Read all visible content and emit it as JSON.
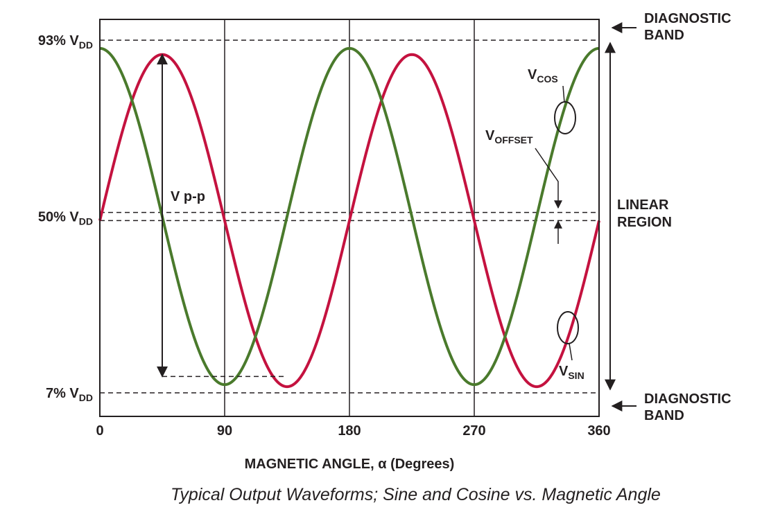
{
  "chart_data": {
    "type": "line",
    "xlabel": "MAGNETIC ANGLE, α (Degrees)",
    "x_ticks": [
      "0",
      "90",
      "180",
      "270",
      "360"
    ],
    "xlim": [
      0,
      360
    ],
    "ylim_percent_vdd": [
      0,
      100
    ],
    "y_ticks": [
      {
        "value": 93,
        "prefix": "93% V",
        "sub": "DD"
      },
      {
        "value": 50,
        "prefix": "50% V",
        "sub": "DD"
      },
      {
        "value": 7,
        "prefix": "7% V",
        "sub": "DD"
      }
    ],
    "x_grid": [
      90,
      180,
      270
    ],
    "series": [
      {
        "name": "V_SIN",
        "color": "#c4123f",
        "x": [
          0,
          45,
          90,
          135,
          180,
          225,
          270,
          315,
          360
        ],
        "values": [
          49,
          89.5,
          49,
          8.5,
          49,
          89.5,
          49,
          8.5,
          49
        ]
      },
      {
        "name": "V_COS",
        "color": "#4a7a2c",
        "x": [
          0,
          45,
          90,
          135,
          180,
          225,
          270,
          315,
          360
        ],
        "values": [
          91,
          50,
          9,
          50,
          91,
          50,
          9,
          50,
          91
        ]
      }
    ],
    "dashed_levels": [
      93,
      51,
      49,
      7
    ],
    "vpp_marker": {
      "label": "V p-p",
      "x": 45,
      "top": 89.5,
      "bottom": 11
    }
  },
  "annotations": {
    "diag_top": [
      "DIAGNOSTIC",
      "BAND"
    ],
    "diag_bottom": [
      "DIAGNOSTIC",
      "BAND"
    ],
    "linear": [
      "LINEAR",
      "REGION"
    ],
    "vcos": {
      "main": "V",
      "sub": "COS"
    },
    "vsin": {
      "main": "V",
      "sub": "SIN"
    },
    "voffset": {
      "main": "V",
      "sub": "OFFSET"
    }
  },
  "caption": "Typical Output Waveforms; Sine and Cosine vs. Magnetic Angle"
}
